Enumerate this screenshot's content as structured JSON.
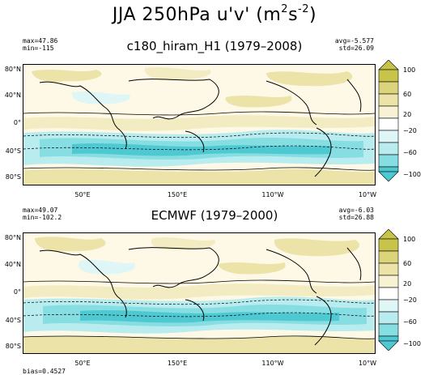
{
  "figure": {
    "title_main": "JJA 250hPa u'v' (m",
    "title_sup": "2",
    "title_mid": "s",
    "title_sup2": "-2",
    "title_end": ")"
  },
  "panels": [
    {
      "subtitle": "c180_hiram_H1 (1979–2008)",
      "max_text": "max=47.86",
      "min_text": "min=-115",
      "avg_text": "avg=-5.577",
      "std_text": "std=26.09"
    },
    {
      "subtitle": "ECMWF (1979–2000)",
      "max_text": "max=49.07",
      "min_text": "min=-102.2",
      "avg_text": "avg=-6.03",
      "std_text": "std=26.88"
    }
  ],
  "lat_labels": [
    "80°N",
    "40°N",
    "0°",
    "40°S",
    "80°S"
  ],
  "lon_labels": [
    "50°E",
    "150°E",
    "110°W",
    "10°W"
  ],
  "colorbar": {
    "labels": [
      "100",
      "60",
      "20",
      "−20",
      "−60",
      "−100"
    ],
    "colors": [
      "#c8c44a",
      "#dcd47a",
      "#ece3a8",
      "#f8f2d4",
      "#ffffff",
      "#dff6f6",
      "#b8ecee",
      "#86dde2",
      "#4ec9d2"
    ]
  },
  "footer": {
    "text": "bias=0.4527"
  }
}
